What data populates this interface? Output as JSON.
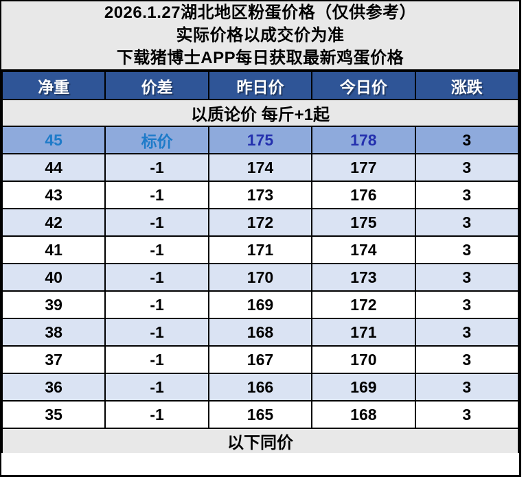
{
  "title": {
    "line1": "2026.1.27湖北地区粉蛋价格（仅供参考）",
    "line2": "实际价格以成交价为准",
    "line3": "下载猪博士APP每日获取最新鸡蛋价格"
  },
  "table": {
    "columns": [
      "净重",
      "价差",
      "昨日价",
      "今日价",
      "涨跌"
    ],
    "notice_row": "以质论价 每斤+1起",
    "footer_row": "以下同价",
    "rows": [
      {
        "weight": "45",
        "diff": "标价",
        "yesterday": "175",
        "today": "178",
        "change": "3",
        "highlight": true
      },
      {
        "weight": "44",
        "diff": "-1",
        "yesterday": "174",
        "today": "177",
        "change": "3"
      },
      {
        "weight": "43",
        "diff": "-1",
        "yesterday": "173",
        "today": "176",
        "change": "3"
      },
      {
        "weight": "42",
        "diff": "-1",
        "yesterday": "172",
        "today": "175",
        "change": "3"
      },
      {
        "weight": "41",
        "diff": "-1",
        "yesterday": "171",
        "today": "174",
        "change": "3"
      },
      {
        "weight": "40",
        "diff": "-1",
        "yesterday": "170",
        "today": "173",
        "change": "3"
      },
      {
        "weight": "39",
        "diff": "-1",
        "yesterday": "169",
        "today": "172",
        "change": "3"
      },
      {
        "weight": "38",
        "diff": "-1",
        "yesterday": "168",
        "today": "171",
        "change": "3"
      },
      {
        "weight": "37",
        "diff": "-1",
        "yesterday": "167",
        "today": "170",
        "change": "3"
      },
      {
        "weight": "36",
        "diff": "-1",
        "yesterday": "166",
        "today": "169",
        "change": "3"
      },
      {
        "weight": "35",
        "diff": "-1",
        "yesterday": "165",
        "today": "168",
        "change": "3"
      }
    ]
  },
  "colors": {
    "title_bg": "#E8E8E8",
    "header_bg": "#2F5597",
    "header_text": "#FFFFFF",
    "notice_bg": "#E8E8E8",
    "highlight_bg": "#8EAADC",
    "highlight_label": "#1E7BC9",
    "highlight_price": "#2430AE",
    "row_alt_bg": "#DAE3F3",
    "row_bg": "#FFFFFF",
    "border": "#000000",
    "text": "#000000"
  }
}
